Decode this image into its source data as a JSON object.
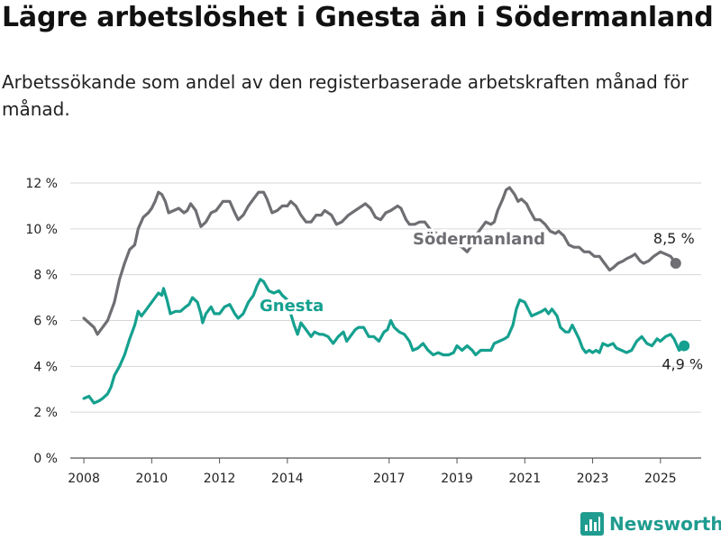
{
  "header": {
    "title": "Lägre arbetslöshet i Gnesta än i Södermanland",
    "subtitle": "Arbetssökande som andel av den registerbaserade arbetskraften månad för månad."
  },
  "brand": {
    "name": "Newsworthy",
    "icon": "bar-chart-logo-icon",
    "color": "#1f9b8f"
  },
  "chart_data": {
    "type": "line",
    "xlim": [
      2007.6,
      2026.2
    ],
    "ylim": [
      0,
      12
    ],
    "yticks": [
      {
        "value": 0,
        "label": "0 %"
      },
      {
        "value": 2,
        "label": "2 %"
      },
      {
        "value": 4,
        "label": "4 %"
      },
      {
        "value": 6,
        "label": "6 %"
      },
      {
        "value": 8,
        "label": "8 %"
      },
      {
        "value": 10,
        "label": "10 %"
      },
      {
        "value": 12,
        "label": "12 %"
      }
    ],
    "xticks": [
      {
        "value": 2008,
        "label": "2008"
      },
      {
        "value": 2010,
        "label": "2010"
      },
      {
        "value": 2012,
        "label": "2012"
      },
      {
        "value": 2014,
        "label": "2014"
      },
      {
        "value": 2017,
        "label": "2017"
      },
      {
        "value": 2019,
        "label": "2019"
      },
      {
        "value": 2021,
        "label": "2021"
      },
      {
        "value": 2023,
        "label": "2023"
      },
      {
        "value": 2025,
        "label": "2025"
      }
    ],
    "grid": true,
    "series": [
      {
        "name": "Södermanland",
        "color": "#6e6e73",
        "end_label": "8,5 %",
        "points": [
          [
            2008.0,
            6.1
          ],
          [
            2008.15,
            5.9
          ],
          [
            2008.3,
            5.7
          ],
          [
            2008.4,
            5.4
          ],
          [
            2008.55,
            5.7
          ],
          [
            2008.7,
            6.0
          ],
          [
            2008.9,
            6.8
          ],
          [
            2009.05,
            7.8
          ],
          [
            2009.2,
            8.5
          ],
          [
            2009.35,
            9.1
          ],
          [
            2009.5,
            9.3
          ],
          [
            2009.6,
            10.0
          ],
          [
            2009.75,
            10.5
          ],
          [
            2009.9,
            10.7
          ],
          [
            2010.0,
            10.9
          ],
          [
            2010.1,
            11.2
          ],
          [
            2010.2,
            11.6
          ],
          [
            2010.3,
            11.5
          ],
          [
            2010.4,
            11.2
          ],
          [
            2010.5,
            10.7
          ],
          [
            2010.65,
            10.8
          ],
          [
            2010.8,
            10.9
          ],
          [
            2010.95,
            10.7
          ],
          [
            2011.05,
            10.8
          ],
          [
            2011.15,
            11.1
          ],
          [
            2011.3,
            10.8
          ],
          [
            2011.45,
            10.1
          ],
          [
            2011.6,
            10.3
          ],
          [
            2011.75,
            10.7
          ],
          [
            2011.9,
            10.8
          ],
          [
            2012.0,
            11.0
          ],
          [
            2012.1,
            11.2
          ],
          [
            2012.3,
            11.2
          ],
          [
            2012.45,
            10.7
          ],
          [
            2012.55,
            10.4
          ],
          [
            2012.7,
            10.6
          ],
          [
            2012.85,
            11.0
          ],
          [
            2013.0,
            11.3
          ],
          [
            2013.15,
            11.6
          ],
          [
            2013.3,
            11.6
          ],
          [
            2013.4,
            11.3
          ],
          [
            2013.55,
            10.7
          ],
          [
            2013.7,
            10.8
          ],
          [
            2013.85,
            11.0
          ],
          [
            2014.0,
            11.0
          ],
          [
            2014.1,
            11.2
          ],
          [
            2014.25,
            11.0
          ],
          [
            2014.4,
            10.6
          ],
          [
            2014.55,
            10.3
          ],
          [
            2014.7,
            10.3
          ],
          [
            2014.85,
            10.6
          ],
          [
            2015.0,
            10.6
          ],
          [
            2015.1,
            10.8
          ],
          [
            2015.3,
            10.6
          ],
          [
            2015.45,
            10.2
          ],
          [
            2015.6,
            10.3
          ],
          [
            2015.8,
            10.6
          ],
          [
            2016.0,
            10.8
          ],
          [
            2016.2,
            11.0
          ],
          [
            2016.3,
            11.1
          ],
          [
            2016.45,
            10.9
          ],
          [
            2016.6,
            10.5
          ],
          [
            2016.75,
            10.4
          ],
          [
            2016.9,
            10.7
          ],
          [
            2017.05,
            10.8
          ],
          [
            2017.25,
            11.0
          ],
          [
            2017.35,
            10.9
          ],
          [
            2017.5,
            10.4
          ],
          [
            2017.6,
            10.2
          ],
          [
            2017.75,
            10.2
          ],
          [
            2017.9,
            10.3
          ],
          [
            2018.05,
            10.3
          ],
          [
            2018.2,
            10.0
          ],
          [
            2018.4,
            9.8
          ],
          [
            2018.6,
            9.6
          ],
          [
            2018.8,
            9.3
          ],
          [
            2019.0,
            9.3
          ],
          [
            2019.15,
            9.2
          ],
          [
            2019.3,
            9.0
          ],
          [
            2019.4,
            9.2
          ],
          [
            2019.55,
            9.7
          ],
          [
            2019.7,
            10.0
          ],
          [
            2019.85,
            10.3
          ],
          [
            2020.0,
            10.2
          ],
          [
            2020.1,
            10.3
          ],
          [
            2020.2,
            10.8
          ],
          [
            2020.35,
            11.3
          ],
          [
            2020.45,
            11.7
          ],
          [
            2020.55,
            11.8
          ],
          [
            2020.7,
            11.5
          ],
          [
            2020.8,
            11.2
          ],
          [
            2020.9,
            11.3
          ],
          [
            2021.05,
            11.1
          ],
          [
            2021.15,
            10.8
          ],
          [
            2021.3,
            10.4
          ],
          [
            2021.45,
            10.4
          ],
          [
            2021.6,
            10.2
          ],
          [
            2021.75,
            9.9
          ],
          [
            2021.9,
            9.8
          ],
          [
            2022.0,
            9.9
          ],
          [
            2022.15,
            9.7
          ],
          [
            2022.3,
            9.3
          ],
          [
            2022.45,
            9.2
          ],
          [
            2022.6,
            9.2
          ],
          [
            2022.75,
            9.0
          ],
          [
            2022.9,
            9.0
          ],
          [
            2023.05,
            8.8
          ],
          [
            2023.2,
            8.8
          ],
          [
            2023.35,
            8.5
          ],
          [
            2023.5,
            8.2
          ],
          [
            2023.6,
            8.3
          ],
          [
            2023.75,
            8.5
          ],
          [
            2023.9,
            8.6
          ],
          [
            2024.0,
            8.7
          ],
          [
            2024.15,
            8.8
          ],
          [
            2024.25,
            8.9
          ],
          [
            2024.4,
            8.6
          ],
          [
            2024.5,
            8.5
          ],
          [
            2024.65,
            8.6
          ],
          [
            2024.8,
            8.8
          ],
          [
            2025.0,
            9.0
          ],
          [
            2025.15,
            8.9
          ],
          [
            2025.3,
            8.8
          ],
          [
            2025.45,
            8.5
          ]
        ]
      },
      {
        "name": "Gnesta",
        "color": "#15a08f",
        "end_label": "4,9 %",
        "points": [
          [
            2008.0,
            2.6
          ],
          [
            2008.15,
            2.7
          ],
          [
            2008.3,
            2.4
          ],
          [
            2008.45,
            2.5
          ],
          [
            2008.55,
            2.6
          ],
          [
            2008.7,
            2.8
          ],
          [
            2008.8,
            3.1
          ],
          [
            2008.9,
            3.6
          ],
          [
            2009.05,
            4.0
          ],
          [
            2009.2,
            4.5
          ],
          [
            2009.35,
            5.2
          ],
          [
            2009.5,
            5.8
          ],
          [
            2009.6,
            6.4
          ],
          [
            2009.7,
            6.2
          ],
          [
            2009.85,
            6.5
          ],
          [
            2010.0,
            6.8
          ],
          [
            2010.1,
            7.0
          ],
          [
            2010.2,
            7.2
          ],
          [
            2010.3,
            7.1
          ],
          [
            2010.35,
            7.4
          ],
          [
            2010.45,
            6.9
          ],
          [
            2010.55,
            6.3
          ],
          [
            2010.7,
            6.4
          ],
          [
            2010.85,
            6.4
          ],
          [
            2011.0,
            6.6
          ],
          [
            2011.1,
            6.7
          ],
          [
            2011.2,
            7.0
          ],
          [
            2011.35,
            6.8
          ],
          [
            2011.45,
            6.3
          ],
          [
            2011.5,
            5.9
          ],
          [
            2011.6,
            6.3
          ],
          [
            2011.75,
            6.6
          ],
          [
            2011.85,
            6.3
          ],
          [
            2012.0,
            6.3
          ],
          [
            2012.15,
            6.6
          ],
          [
            2012.3,
            6.7
          ],
          [
            2012.45,
            6.3
          ],
          [
            2012.55,
            6.1
          ],
          [
            2012.7,
            6.3
          ],
          [
            2012.85,
            6.8
          ],
          [
            2013.0,
            7.1
          ],
          [
            2013.1,
            7.5
          ],
          [
            2013.2,
            7.8
          ],
          [
            2013.3,
            7.7
          ],
          [
            2013.45,
            7.3
          ],
          [
            2013.6,
            7.2
          ],
          [
            2013.75,
            7.3
          ],
          [
            2013.85,
            7.1
          ],
          [
            2014.0,
            6.9
          ],
          [
            2014.1,
            6.3
          ],
          [
            2014.2,
            5.8
          ],
          [
            2014.3,
            5.4
          ],
          [
            2014.4,
            5.9
          ],
          [
            2014.55,
            5.6
          ],
          [
            2014.7,
            5.3
          ],
          [
            2014.8,
            5.5
          ],
          [
            2014.95,
            5.4
          ],
          [
            2015.05,
            5.4
          ],
          [
            2015.2,
            5.3
          ],
          [
            2015.35,
            5.0
          ],
          [
            2015.5,
            5.3
          ],
          [
            2015.65,
            5.5
          ],
          [
            2015.75,
            5.1
          ],
          [
            2015.85,
            5.3
          ],
          [
            2016.0,
            5.6
          ],
          [
            2016.1,
            5.7
          ],
          [
            2016.25,
            5.7
          ],
          [
            2016.4,
            5.3
          ],
          [
            2016.55,
            5.3
          ],
          [
            2016.7,
            5.1
          ],
          [
            2016.85,
            5.5
          ],
          [
            2016.95,
            5.6
          ],
          [
            2017.05,
            6.0
          ],
          [
            2017.15,
            5.7
          ],
          [
            2017.3,
            5.5
          ],
          [
            2017.45,
            5.4
          ],
          [
            2017.6,
            5.1
          ],
          [
            2017.7,
            4.7
          ],
          [
            2017.85,
            4.8
          ],
          [
            2018.0,
            5.0
          ],
          [
            2018.15,
            4.7
          ],
          [
            2018.3,
            4.5
          ],
          [
            2018.45,
            4.6
          ],
          [
            2018.6,
            4.5
          ],
          [
            2018.75,
            4.5
          ],
          [
            2018.9,
            4.6
          ],
          [
            2019.0,
            4.9
          ],
          [
            2019.15,
            4.7
          ],
          [
            2019.3,
            4.9
          ],
          [
            2019.45,
            4.7
          ],
          [
            2019.55,
            4.5
          ],
          [
            2019.7,
            4.7
          ],
          [
            2019.85,
            4.7
          ],
          [
            2020.0,
            4.7
          ],
          [
            2020.1,
            5.0
          ],
          [
            2020.25,
            5.1
          ],
          [
            2020.4,
            5.2
          ],
          [
            2020.5,
            5.3
          ],
          [
            2020.65,
            5.8
          ],
          [
            2020.75,
            6.5
          ],
          [
            2020.85,
            6.9
          ],
          [
            2021.0,
            6.8
          ],
          [
            2021.1,
            6.5
          ],
          [
            2021.2,
            6.2
          ],
          [
            2021.35,
            6.3
          ],
          [
            2021.5,
            6.4
          ],
          [
            2021.6,
            6.5
          ],
          [
            2021.7,
            6.3
          ],
          [
            2021.8,
            6.5
          ],
          [
            2021.95,
            6.2
          ],
          [
            2022.05,
            5.7
          ],
          [
            2022.2,
            5.5
          ],
          [
            2022.3,
            5.5
          ],
          [
            2022.4,
            5.8
          ],
          [
            2022.5,
            5.5
          ],
          [
            2022.6,
            5.2
          ],
          [
            2022.7,
            4.8
          ],
          [
            2022.8,
            4.6
          ],
          [
            2022.9,
            4.7
          ],
          [
            2023.0,
            4.6
          ],
          [
            2023.1,
            4.7
          ],
          [
            2023.2,
            4.6
          ],
          [
            2023.3,
            5.0
          ],
          [
            2023.45,
            4.9
          ],
          [
            2023.6,
            5.0
          ],
          [
            2023.7,
            4.8
          ],
          [
            2023.85,
            4.7
          ],
          [
            2024.0,
            4.6
          ],
          [
            2024.15,
            4.7
          ],
          [
            2024.3,
            5.1
          ],
          [
            2024.45,
            5.3
          ],
          [
            2024.6,
            5.0
          ],
          [
            2024.75,
            4.9
          ],
          [
            2024.9,
            5.2
          ],
          [
            2025.0,
            5.1
          ],
          [
            2025.15,
            5.3
          ],
          [
            2025.3,
            5.4
          ],
          [
            2025.4,
            5.2
          ],
          [
            2025.55,
            4.7
          ],
          [
            2025.7,
            4.9
          ]
        ]
      }
    ]
  }
}
